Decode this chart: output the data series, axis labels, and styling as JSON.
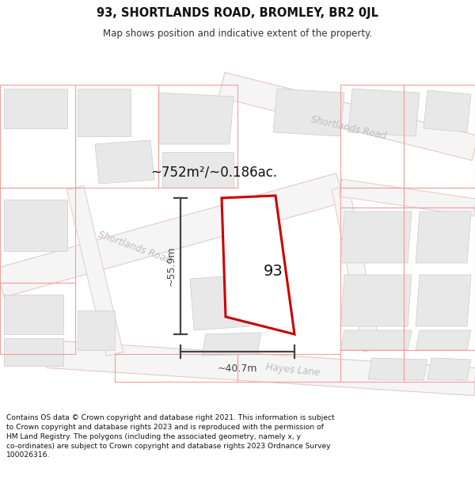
{
  "title": "93, SHORTLANDS ROAD, BROMLEY, BR2 0JL",
  "subtitle": "Map shows position and indicative extent of the property.",
  "area_text": "~752m²/~0.186ac.",
  "number_label": "93",
  "dim_horiz": "~40.7m",
  "dim_vert": "~55.9m",
  "road_label_shortlands_diag": "Shortlands Road",
  "road_label_shortlands_top": "Shortlands Road",
  "road_label_hayes": "Hayes Lane",
  "footer": "Contains OS data © Crown copyright and database right 2021. This information is subject to Crown copyright and database rights 2023 and is reproduced with the permission of HM Land Registry. The polygons (including the associated geometry, namely x, y co-ordinates) are subject to Crown copyright and database rights 2023 Ordnance Survey 100026316.",
  "bg_color": "#ffffff",
  "map_bg": "#ffffff",
  "building_fill": "#e8e8e8",
  "building_edge": "#cccccc",
  "property_color": "#cc0000",
  "property_fill": "#ffffff",
  "dim_color": "#444444",
  "cadastral_color": "#f0a0a0",
  "road_fill": "#f0f0f0",
  "road_edge": "#dddddd",
  "road_label_color": "#bbbbbb"
}
